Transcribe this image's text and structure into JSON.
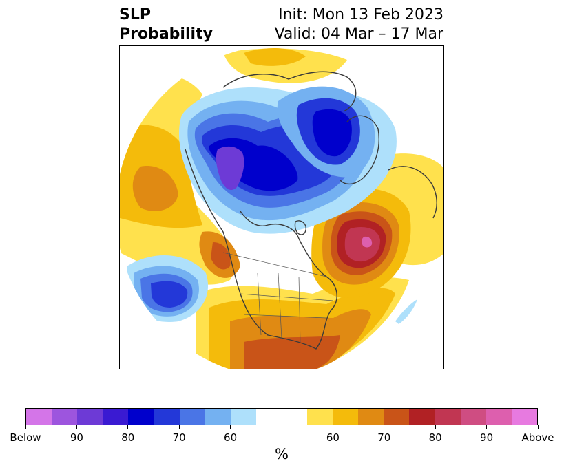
{
  "title": {
    "line1": "SLP",
    "line2": "Probability",
    "init": "Init: Mon 13 Feb 2023",
    "valid": "Valid: 04 Mar – 17 Mar"
  },
  "map": {
    "projection": "north polar stereographic",
    "region": "Northern Hemisphere / North America"
  },
  "colorbar": {
    "colors": [
      "#d475e8",
      "#9d55de",
      "#6d3ad6",
      "#3a1ad2",
      "#0000cc",
      "#2338d8",
      "#4a75e6",
      "#74b1f1",
      "#aee0fb",
      "#ffffff",
      "#ffffff",
      "#ffe14d",
      "#f4bb0b",
      "#e08a13",
      "#c95418",
      "#b12124",
      "#c13652",
      "#cf4d82",
      "#dd5fae",
      "#e77ae0"
    ],
    "labels": [
      "Below",
      "90",
      "80",
      "70",
      "60",
      "60",
      "70",
      "80",
      "90",
      "Above"
    ],
    "units": "%"
  }
}
